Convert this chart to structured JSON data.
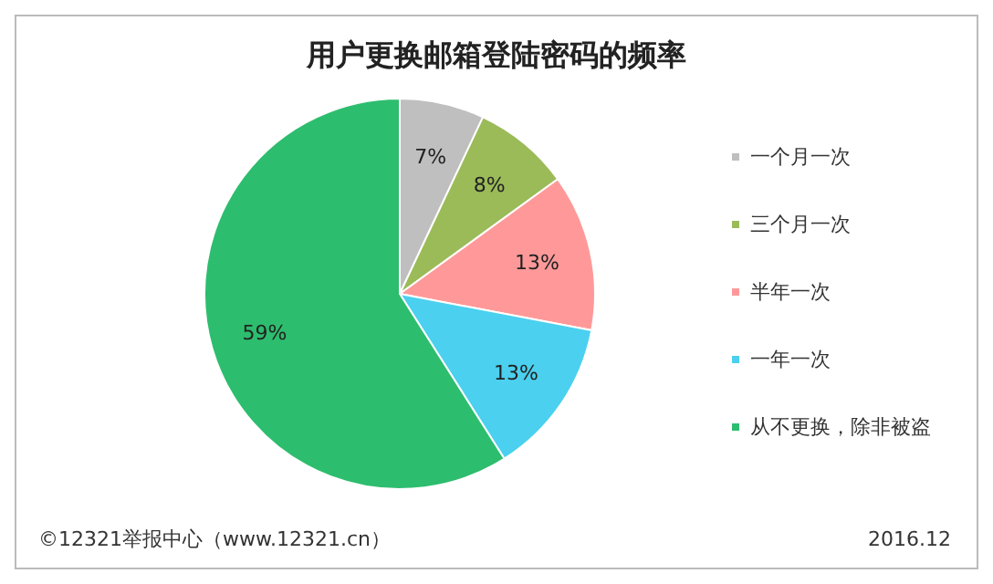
{
  "chart_data": {
    "type": "pie",
    "title": "用户更换邮箱登陆密码的频率",
    "categories": [
      "一个月一次",
      "三个月一次",
      "半年一次",
      "一年一次",
      "从不更换，除非被盗"
    ],
    "values": [
      7,
      8,
      13,
      13,
      59
    ],
    "colors": [
      "#bfbfbf",
      "#9bbb59",
      "#ff9999",
      "#4bd0ef",
      "#2dbd6e"
    ],
    "value_labels": [
      "7%",
      "8%",
      "13%",
      "13%",
      "59%"
    ],
    "legend": "right",
    "annotations": [
      "©12321举报中心（www.12321.cn）",
      "2016.12"
    ]
  }
}
